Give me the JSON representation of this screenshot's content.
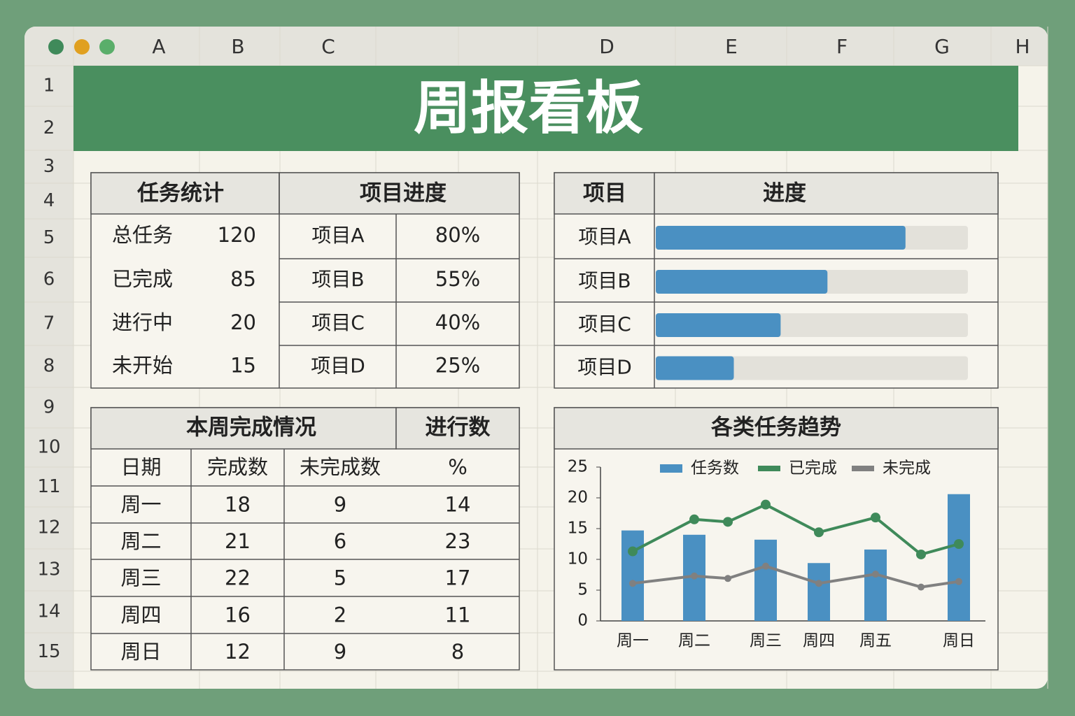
{
  "window": {
    "columns": [
      "A",
      "B",
      "C",
      "D",
      "E",
      "F",
      "G",
      "H"
    ],
    "rows": [
      1,
      2,
      3,
      4,
      5,
      6,
      7,
      8,
      9,
      10,
      11,
      12,
      13,
      14,
      15
    ]
  },
  "title": "周报看板",
  "task_stats": {
    "header": "任务统计",
    "rows": [
      [
        "总任务",
        120
      ],
      [
        "已完成",
        85
      ],
      [
        "进行中",
        20
      ],
      [
        "未开始",
        15
      ]
    ]
  },
  "project_progress": {
    "header": "项目进度",
    "rows": [
      [
        "项目A",
        "80%"
      ],
      [
        "项目B",
        "55%"
      ],
      [
        "项目C",
        "40%"
      ],
      [
        "项目D",
        "25%"
      ]
    ]
  },
  "progress_chart": {
    "type": "bar",
    "headers": [
      "项目",
      "进度"
    ],
    "categories": [
      "项目A",
      "项目B",
      "项目C",
      "项目D"
    ],
    "values": [
      80,
      55,
      40,
      25
    ],
    "xlim": [
      0,
      100
    ],
    "color": "#4a90c2",
    "track_color": "#e3e1da"
  },
  "weekly": {
    "headers": [
      "本周完成情况",
      "进行数"
    ],
    "columns": [
      "日期",
      "完成数",
      "未完成数",
      "%"
    ],
    "rows": [
      [
        "周一",
        18,
        9,
        14
      ],
      [
        "周二",
        21,
        6,
        23
      ],
      [
        "周三",
        22,
        5,
        17
      ],
      [
        "周四",
        16,
        2,
        11
      ],
      [
        "周日",
        12,
        9,
        8
      ]
    ]
  },
  "trend_chart": {
    "type": "combo",
    "title": "各类任务趋势",
    "categories": [
      "周一",
      "周二",
      null,
      "周三",
      "周四",
      "周五",
      null,
      "周日"
    ],
    "series": [
      {
        "name": "任务数",
        "type": "bar",
        "color": "#4a90c2",
        "values": [
          14.7,
          14,
          null,
          13.2,
          9.4,
          11.6,
          null,
          20.6
        ]
      },
      {
        "name": "已完成",
        "type": "line",
        "color": "#3f8a5a",
        "values": [
          11.3,
          16.5,
          16.1,
          18.9,
          14.4,
          16.8,
          10.8,
          12.5
        ]
      },
      {
        "name": "未完成",
        "type": "line",
        "color": "#808080",
        "values": [
          6.1,
          7.3,
          6.9,
          8.9,
          6.1,
          7.6,
          5.5,
          6.4
        ]
      }
    ],
    "ylim": [
      0,
      25
    ],
    "yticks": [
      0,
      5,
      10,
      15,
      20,
      25
    ]
  }
}
